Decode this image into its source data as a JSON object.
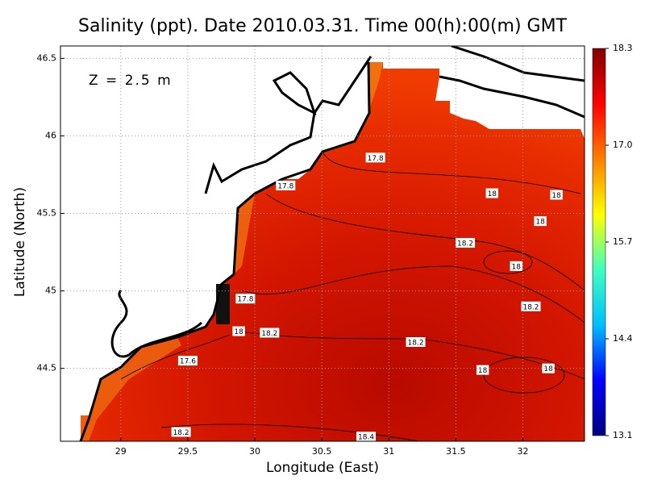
{
  "chart_data": {
    "type": "contour-map",
    "title": "Salinity (ppt). Date 2010.03.31. Time 00(h):00(m) GMT",
    "annotation": "Z = 2.5 m",
    "x_label": "Longitude (East)",
    "y_label": "Latitude (North)",
    "xlim": [
      28.55,
      32.46
    ],
    "ylim": [
      44.03,
      46.58
    ],
    "xticks": [
      29,
      29.5,
      30,
      30.5,
      31,
      31.5,
      32
    ],
    "yticks": [
      44.5,
      45,
      45.5,
      46,
      46.5
    ],
    "grid": true,
    "colorbar": {
      "lim": [
        13.1,
        18.3
      ],
      "ticks": [
        13.1,
        14.4,
        15.7,
        {
          "value": 17.0,
          "label": "17.0"
        },
        18.3
      ],
      "colors": [
        "#00007f",
        "#0000ff",
        "#00bfff",
        "#40ffbf",
        "#ffff00",
        "#ff8000",
        "#ff0000",
        "#7f0000"
      ]
    },
    "contour_labels": [
      {
        "lon": 30.9,
        "lat": 45.86,
        "value": 17.8
      },
      {
        "lon": 30.23,
        "lat": 45.68,
        "value": 17.8
      },
      {
        "lon": 31.77,
        "lat": 45.63,
        "value": 18
      },
      {
        "lon": 32.25,
        "lat": 45.62,
        "value": 18
      },
      {
        "lon": 32.13,
        "lat": 45.45,
        "value": 18
      },
      {
        "lon": 31.57,
        "lat": 45.31,
        "value": 18.2
      },
      {
        "lon": 31.95,
        "lat": 45.16,
        "value": 18
      },
      {
        "lon": 29.93,
        "lat": 44.95,
        "value": 17.8
      },
      {
        "lon": 32.06,
        "lat": 44.9,
        "value": 18.2
      },
      {
        "lon": 29.88,
        "lat": 44.74,
        "value": 18
      },
      {
        "lon": 30.11,
        "lat": 44.73,
        "value": 18.2
      },
      {
        "lon": 31.2,
        "lat": 44.67,
        "value": 18.2
      },
      {
        "lon": 31.7,
        "lat": 44.49,
        "value": 18
      },
      {
        "lon": 32.19,
        "lat": 44.5,
        "value": 18
      },
      {
        "lon": 29.5,
        "lat": 44.55,
        "value": 17.6
      },
      {
        "lon": 29.45,
        "lat": 44.09,
        "value": 18.2
      },
      {
        "lon": 30.83,
        "lat": 44.06,
        "value": 18.4
      }
    ]
  }
}
